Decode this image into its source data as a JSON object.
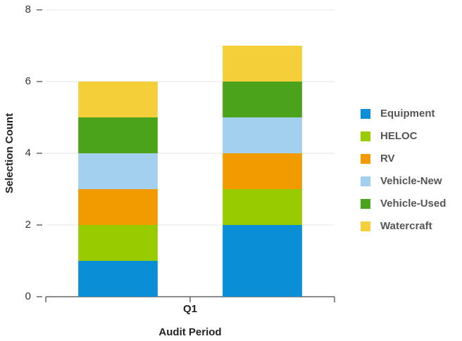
{
  "chart_data": {
    "type": "stacked_bar",
    "categories": [
      null,
      null
    ],
    "group_label": "Q1",
    "x_label": "Audit Period",
    "y_label": "Selection Count",
    "series": [
      {
        "name": "Equipment",
        "color": "#0a8fd6",
        "values": [
          1,
          2
        ]
      },
      {
        "name": "HELOC",
        "color": "#99cc00",
        "values": [
          1,
          1
        ]
      },
      {
        "name": "RV",
        "color": "#f29b00",
        "values": [
          1,
          1
        ]
      },
      {
        "name": "Vehicle-New",
        "color": "#a4d0ef",
        "values": [
          1,
          1
        ]
      },
      {
        "name": "Vehicle-Used",
        "color": "#4aa31a",
        "values": [
          1,
          1
        ]
      },
      {
        "name": "Watercraft",
        "color": "#f5cf3a",
        "values": [
          1,
          1
        ]
      }
    ],
    "ylim": [
      0,
      8
    ],
    "yticks": [
      0,
      2,
      4,
      6,
      8
    ],
    "grid": true,
    "legend": "right"
  }
}
